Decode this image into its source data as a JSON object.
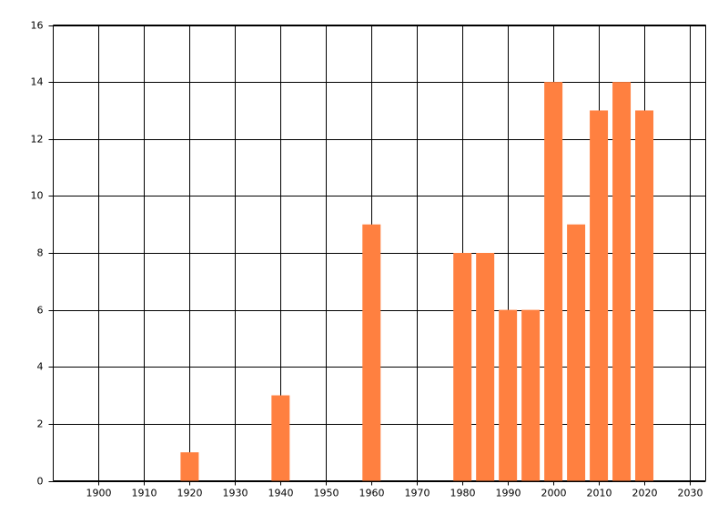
{
  "chart_data": {
    "type": "bar",
    "x": [
      1920,
      1940,
      1960,
      1980,
      1985,
      1990,
      1995,
      2000,
      2005,
      2010,
      2015,
      2020
    ],
    "values": [
      1,
      3,
      9,
      8,
      8,
      6,
      6,
      14,
      9,
      13,
      14,
      13
    ],
    "color": "#ff8040",
    "xlim": [
      1890,
      2033.5
    ],
    "xticks": [
      1900,
      1910,
      1920,
      1930,
      1940,
      1950,
      1960,
      1970,
      1980,
      1990,
      2000,
      2010,
      2020,
      2030
    ],
    "ylim": [
      0,
      16
    ],
    "yticks": [
      0,
      2,
      4,
      6,
      8,
      10,
      12,
      14,
      16
    ],
    "grid": true
  }
}
